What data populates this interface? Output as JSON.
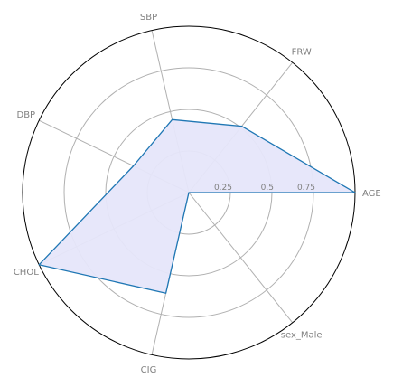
{
  "chart_data": {
    "type": "radar",
    "axes": [
      "AGE",
      "FRW",
      "SBP",
      "DBP",
      "CHOL",
      "CIG",
      "sex_Male"
    ],
    "radial_ticks": [
      0.25,
      0.5,
      0.75
    ],
    "radial_tick_labels": [
      "0.25",
      "0.5",
      "0.75"
    ],
    "rlim": [
      0,
      1
    ],
    "series": [
      {
        "values": [
          1.0,
          0.51,
          0.45,
          0.37,
          1.0,
          0.62,
          0.0
        ]
      }
    ],
    "grid": true,
    "colors": {
      "line": "#1f77b4",
      "fill": "#e6e6fa",
      "grid": "#b0b0b0",
      "outer_ring": "#000000",
      "labels": "#808080"
    }
  }
}
